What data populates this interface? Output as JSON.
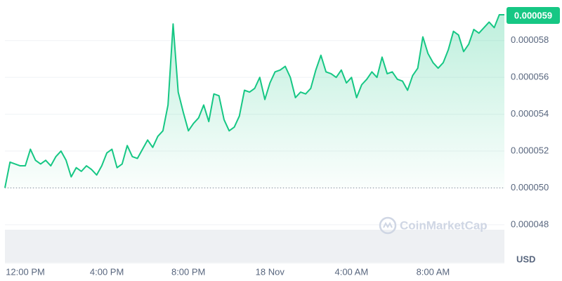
{
  "chart_data": {
    "type": "area",
    "color": "#16c784",
    "y_label": "USD",
    "watermark": "CoinMarketCap",
    "last_price": {
      "value": 5.9e-05,
      "label": "0.000059"
    },
    "baseline": {
      "value": 5e-05
    },
    "grid": true,
    "categories": [
      null,
      null,
      null,
      null,
      "12:00 PM",
      null,
      null,
      null,
      null,
      null,
      null,
      null,
      null,
      null,
      null,
      null,
      null,
      null,
      null,
      null,
      "4:00 PM",
      null,
      null,
      null,
      null,
      null,
      null,
      null,
      null,
      null,
      null,
      null,
      null,
      null,
      null,
      null,
      "8:00 PM",
      null,
      null,
      null,
      null,
      null,
      null,
      null,
      null,
      null,
      null,
      null,
      null,
      null,
      null,
      null,
      "18 Nov",
      null,
      null,
      null,
      null,
      null,
      null,
      null,
      null,
      null,
      null,
      null,
      null,
      null,
      null,
      null,
      "4:00 AM",
      null,
      null,
      null,
      null,
      null,
      null,
      null,
      null,
      null,
      null,
      null,
      null,
      null,
      null,
      null,
      "8:00 AM",
      null,
      null,
      null,
      null,
      null,
      null,
      null,
      null,
      null,
      null,
      null,
      null,
      null,
      null
    ],
    "values": [
      5e-05,
      5.14e-05,
      5.13e-05,
      5.12e-05,
      5.12e-05,
      5.21e-05,
      5.15e-05,
      5.13e-05,
      5.15e-05,
      5.12e-05,
      5.17e-05,
      5.2e-05,
      5.15e-05,
      5.06e-05,
      5.11e-05,
      5.09e-05,
      5.12e-05,
      5.1e-05,
      5.07e-05,
      5.12e-05,
      5.19e-05,
      5.21e-05,
      5.11e-05,
      5.13e-05,
      5.23e-05,
      5.17e-05,
      5.16e-05,
      5.21e-05,
      5.26e-05,
      5.22e-05,
      5.28e-05,
      5.31e-05,
      5.45e-05,
      5.89e-05,
      5.52e-05,
      5.41e-05,
      5.31e-05,
      5.35e-05,
      5.38e-05,
      5.45e-05,
      5.36e-05,
      5.51e-05,
      5.5e-05,
      5.37e-05,
      5.31e-05,
      5.33e-05,
      5.39e-05,
      5.53e-05,
      5.52e-05,
      5.54e-05,
      5.6e-05,
      5.48e-05,
      5.57e-05,
      5.63e-05,
      5.64e-05,
      5.66e-05,
      5.6e-05,
      5.49e-05,
      5.52e-05,
      5.51e-05,
      5.54e-05,
      5.64e-05,
      5.72e-05,
      5.63e-05,
      5.62e-05,
      5.6e-05,
      5.64e-05,
      5.57e-05,
      5.6e-05,
      5.49e-05,
      5.56e-05,
      5.59e-05,
      5.63e-05,
      5.6e-05,
      5.71e-05,
      5.62e-05,
      5.63e-05,
      5.59e-05,
      5.58e-05,
      5.53e-05,
      5.61e-05,
      5.65e-05,
      5.82e-05,
      5.73e-05,
      5.68e-05,
      5.65e-05,
      5.68e-05,
      5.75e-05,
      5.85e-05,
      5.83e-05,
      5.74e-05,
      5.78e-05,
      5.86e-05,
      5.84e-05,
      5.87e-05,
      5.9e-05,
      5.87e-05,
      5.94e-05,
      5.94e-05
    ],
    "ylim": [
      4.59e-05,
      6.02e-05
    ],
    "yticks": [
      {
        "value": 4.8e-05,
        "label": "0.000048"
      },
      {
        "value": 5e-05,
        "label": "0.000050"
      },
      {
        "value": 5.2e-05,
        "label": "0.000052"
      },
      {
        "value": 5.4e-05,
        "label": "0.000054"
      },
      {
        "value": 5.6e-05,
        "label": "0.000056"
      },
      {
        "value": 5.8e-05,
        "label": "0.000058"
      }
    ]
  }
}
